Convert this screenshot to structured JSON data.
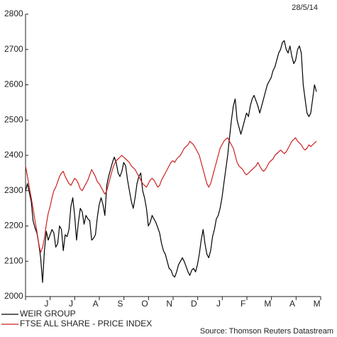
{
  "chart_data": {
    "type": "line",
    "date_label": "28/5/14",
    "source": "Source: Thomson Reuters Datastream",
    "ylim": [
      2000,
      2800
    ],
    "y_ticks": [
      2000,
      2100,
      2200,
      2300,
      2400,
      2500,
      2600,
      2700,
      2800
    ],
    "x_month_labels": [
      "J",
      "J",
      "A",
      "S",
      "O",
      "N",
      "D",
      "J",
      "F",
      "M",
      "A",
      "M"
    ],
    "grid": false,
    "legend_position": "bottom-left",
    "series": [
      {
        "name": "WEIR GROUP",
        "color": "#000000",
        "values": [
          2300,
          2320,
          2295,
          2270,
          2215,
          2195,
          2180,
          2150,
          2110,
          2040,
          2130,
          2185,
          2160,
          2175,
          2190,
          2180,
          2140,
          2150,
          2200,
          2190,
          2130,
          2175,
          2170,
          2190,
          2255,
          2280,
          2230,
          2160,
          2210,
          2250,
          2240,
          2205,
          2230,
          2220,
          2215,
          2160,
          2165,
          2175,
          2225,
          2260,
          2280,
          2260,
          2230,
          2315,
          2340,
          2360,
          2380,
          2395,
          2380,
          2350,
          2340,
          2355,
          2380,
          2370,
          2330,
          2300,
          2270,
          2250,
          2280,
          2320,
          2340,
          2350,
          2300,
          2280,
          2250,
          2200,
          2210,
          2230,
          2220,
          2210,
          2195,
          2180,
          2150,
          2130,
          2120,
          2100,
          2080,
          2075,
          2060,
          2055,
          2070,
          2090,
          2100,
          2110,
          2100,
          2085,
          2070,
          2060,
          2075,
          2080,
          2070,
          2090,
          2120,
          2160,
          2190,
          2150,
          2120,
          2110,
          2130,
          2170,
          2190,
          2220,
          2230,
          2250,
          2280,
          2320,
          2360,
          2400,
          2450,
          2500,
          2540,
          2560,
          2500,
          2480,
          2460,
          2480,
          2500,
          2520,
          2510,
          2540,
          2560,
          2570,
          2555,
          2540,
          2520,
          2540,
          2560,
          2580,
          2600,
          2610,
          2620,
          2640,
          2650,
          2670,
          2690,
          2700,
          2720,
          2725,
          2700,
          2690,
          2710,
          2680,
          2660,
          2670,
          2700,
          2710,
          2690,
          2600,
          2560,
          2520,
          2510,
          2520,
          2560,
          2600,
          2580
        ]
      },
      {
        "name": "FTSE ALL SHARE - PRICE INDEX",
        "color": "#cc2222",
        "values": [
          2370,
          2340,
          2310,
          2280,
          2250,
          2215,
          2185,
          2150,
          2125,
          2140,
          2165,
          2205,
          2235,
          2255,
          2280,
          2300,
          2310,
          2325,
          2340,
          2350,
          2355,
          2340,
          2330,
          2320,
          2315,
          2325,
          2335,
          2330,
          2320,
          2305,
          2300,
          2310,
          2320,
          2330,
          2345,
          2360,
          2350,
          2340,
          2325,
          2320,
          2310,
          2300,
          2290,
          2300,
          2320,
          2340,
          2360,
          2375,
          2385,
          2390,
          2395,
          2400,
          2395,
          2390,
          2385,
          2380,
          2370,
          2365,
          2360,
          2350,
          2340,
          2330,
          2320,
          2315,
          2310,
          2320,
          2330,
          2335,
          2330,
          2320,
          2310,
          2315,
          2330,
          2340,
          2350,
          2360,
          2370,
          2380,
          2385,
          2380,
          2390,
          2395,
          2400,
          2410,
          2420,
          2425,
          2430,
          2440,
          2435,
          2430,
          2420,
          2410,
          2400,
          2380,
          2360,
          2340,
          2320,
          2310,
          2320,
          2340,
          2360,
          2380,
          2400,
          2420,
          2430,
          2440,
          2445,
          2450,
          2440,
          2430,
          2420,
          2400,
          2380,
          2370,
          2365,
          2360,
          2350,
          2345,
          2350,
          2355,
          2360,
          2365,
          2370,
          2380,
          2370,
          2360,
          2355,
          2360,
          2370,
          2380,
          2385,
          2390,
          2400,
          2405,
          2410,
          2415,
          2410,
          2405,
          2410,
          2420,
          2430,
          2440,
          2445,
          2450,
          2440,
          2435,
          2430,
          2420,
          2415,
          2420,
          2430,
          2425,
          2430,
          2435,
          2440
        ]
      }
    ]
  }
}
